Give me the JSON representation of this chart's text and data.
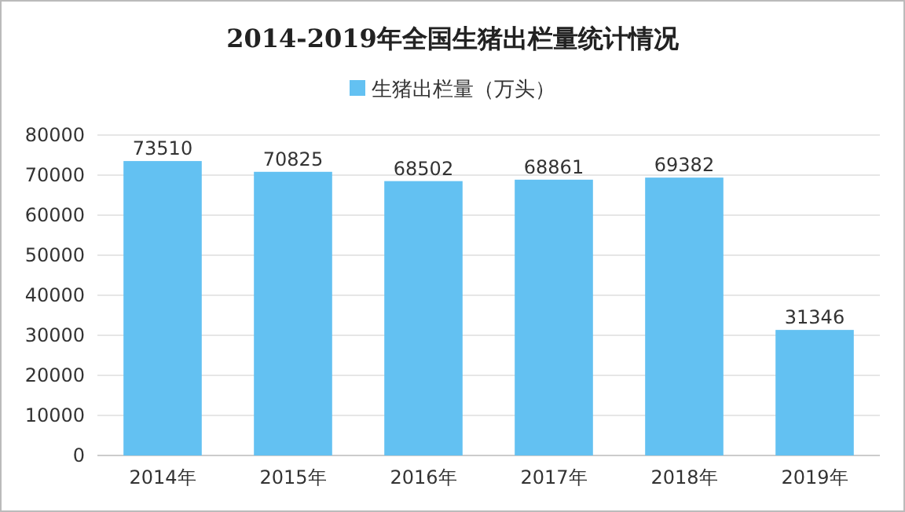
{
  "chart_data": {
    "type": "bar",
    "title": "2014-2019年全国生猪出栏量统计情况",
    "categories": [
      "2014年",
      "2015年",
      "2016年",
      "2017年",
      "2018年",
      "2019年"
    ],
    "series": [
      {
        "name": "生猪出栏量（万头）",
        "color": "#63c1f2",
        "values": [
          73510,
          70825,
          68502,
          68861,
          69382,
          31346
        ]
      }
    ],
    "ylim": [
      0,
      80000
    ],
    "yticks": [
      0,
      10000,
      20000,
      30000,
      40000,
      50000,
      60000,
      70000,
      80000
    ],
    "grid": "y",
    "legend": "top",
    "data_labels": true
  }
}
